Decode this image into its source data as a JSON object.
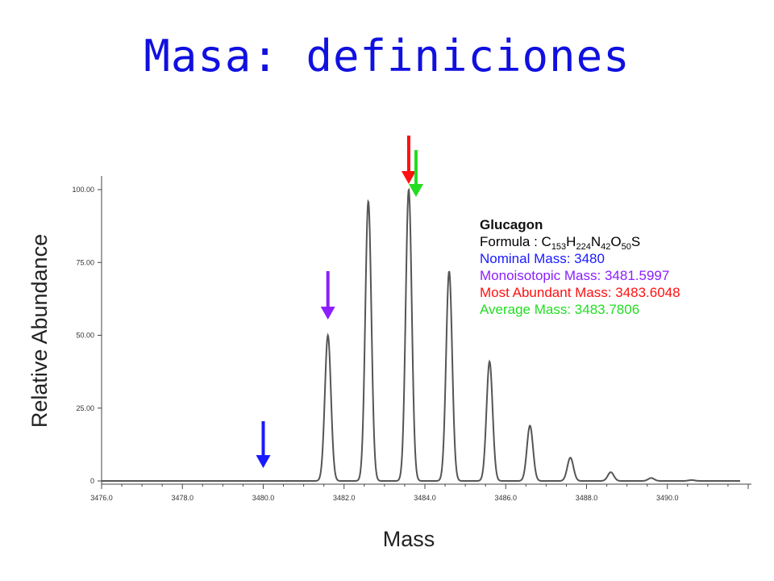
{
  "slide": {
    "title": "Masa: definiciones"
  },
  "info": {
    "name": "Glucagon",
    "formula_label": "Formula :",
    "formula": [
      {
        "el": "C",
        "n": "153"
      },
      {
        "el": "H",
        "n": "224"
      },
      {
        "el": "N",
        "n": "42"
      },
      {
        "el": "O",
        "n": "50"
      },
      {
        "el": "S",
        "n": ""
      }
    ],
    "masses": [
      {
        "key": "nominal",
        "label": "Nominal Mass:",
        "value": "3480",
        "color": "#1a1aff"
      },
      {
        "key": "monoisotopic",
        "label": "Monoisotopic Mass:",
        "value": "3481.5997",
        "color": "#8b1fff"
      },
      {
        "key": "most_abundant",
        "label": "Most Abundant Mass:",
        "value": "3483.6048",
        "color": "#ff1010"
      },
      {
        "key": "average",
        "label": "Average Mass:",
        "value": "3483.7806",
        "color": "#22dd22"
      }
    ]
  },
  "chart_data": {
    "type": "line",
    "xlabel": "Mass",
    "ylabel": "Relative Abundance",
    "xlim": [
      3476.0,
      3492.0
    ],
    "ylim": [
      0,
      100
    ],
    "x_ticks": [
      "3476.0",
      "3478.0",
      "3480.0",
      "3482.0",
      "3484.0",
      "3486.0",
      "3488.0",
      "3490.0"
    ],
    "y_ticks": [
      "0",
      "25.00",
      "50.00",
      "75.00",
      "100.00"
    ],
    "peaks": [
      {
        "x": 3481.6,
        "y": 50
      },
      {
        "x": 3482.6,
        "y": 96
      },
      {
        "x": 3483.6,
        "y": 100
      },
      {
        "x": 3484.6,
        "y": 72
      },
      {
        "x": 3485.6,
        "y": 41
      },
      {
        "x": 3486.6,
        "y": 19
      },
      {
        "x": 3487.6,
        "y": 8
      },
      {
        "x": 3488.6,
        "y": 3
      },
      {
        "x": 3489.6,
        "y": 1
      },
      {
        "x": 3490.6,
        "y": 0.3
      }
    ],
    "arrows": [
      {
        "x": 3480.0,
        "color": "#1a1aff"
      },
      {
        "x": 3481.6,
        "color": "#8b1fff"
      },
      {
        "x": 3483.6,
        "color": "#ff1010"
      },
      {
        "x": 3483.78,
        "color": "#22dd22"
      }
    ],
    "line_color": "#555555"
  }
}
